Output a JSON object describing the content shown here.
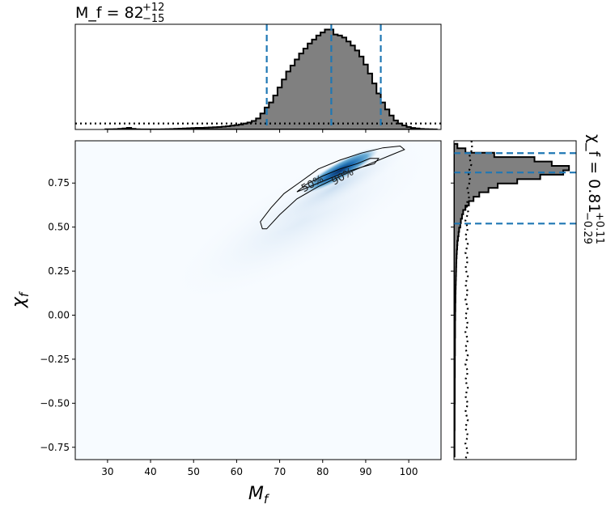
{
  "chart_data": [
    {
      "type": "heatmap",
      "name": "joint-posterior",
      "xlabel": "M_f",
      "ylabel": "χ_f",
      "xlim": [
        22.5,
        107.5
      ],
      "ylim": [
        -0.82,
        0.99
      ],
      "xticks": [
        30,
        40,
        50,
        60,
        70,
        80,
        90,
        100
      ],
      "yticks": [
        -0.75,
        -0.5,
        -0.25,
        0.0,
        0.25,
        0.5,
        0.75
      ],
      "xtick_labels": [
        "30",
        "40",
        "50",
        "60",
        "70",
        "80",
        "90",
        "100"
      ],
      "ytick_labels": [
        "−0.75",
        "−0.50",
        "−0.25",
        "0.00",
        "0.25",
        "0.50",
        "0.75"
      ],
      "colormap": "Blues",
      "density_peak": {
        "x": 84,
        "y": 0.82
      },
      "contours": [
        {
          "label": "50%",
          "label_at": {
            "x": 78,
            "y": 0.73
          },
          "points": [
            [
              74,
              0.7
            ],
            [
              76,
              0.74
            ],
            [
              80,
              0.79
            ],
            [
              84,
              0.83
            ],
            [
              88,
              0.86
            ],
            [
              91,
              0.89
            ],
            [
              93,
              0.89
            ],
            [
              92,
              0.86
            ],
            [
              89,
              0.84
            ],
            [
              85,
              0.81
            ],
            [
              81,
              0.77
            ],
            [
              77,
              0.73
            ],
            [
              75,
              0.71
            ],
            [
              74,
              0.7
            ]
          ]
        },
        {
          "label": "90%",
          "label_at": {
            "x": 85,
            "y": 0.77
          },
          "points": [
            [
              66,
              0.49
            ],
            [
              65.5,
              0.53
            ],
            [
              68,
              0.61
            ],
            [
              71,
              0.69
            ],
            [
              75,
              0.76
            ],
            [
              79,
              0.83
            ],
            [
              84,
              0.88
            ],
            [
              89,
              0.92
            ],
            [
              94,
              0.95
            ],
            [
              98,
              0.96
            ],
            [
              99,
              0.94
            ],
            [
              96,
              0.91
            ],
            [
              91,
              0.86
            ],
            [
              85,
              0.8
            ],
            [
              79,
              0.73
            ],
            [
              74,
              0.66
            ],
            [
              70,
              0.57
            ],
            [
              67,
              0.49
            ],
            [
              66,
              0.49
            ]
          ]
        }
      ]
    },
    {
      "type": "bar",
      "name": "M_f marginal",
      "orientation": "vertical",
      "title": "M_f = 82",
      "title_sup": "+12",
      "title_sub": "−15",
      "x": [
        30,
        31,
        32,
        33,
        34,
        35,
        36,
        37,
        38,
        39,
        40,
        41,
        42,
        43,
        44,
        45,
        46,
        47,
        48,
        49,
        50,
        51,
        52,
        53,
        54,
        55,
        56,
        57,
        58,
        59,
        60,
        61,
        62,
        63,
        64,
        65,
        66,
        67,
        68,
        69,
        70,
        71,
        72,
        73,
        74,
        75,
        76,
        77,
        78,
        79,
        80,
        81,
        82,
        83,
        84,
        85,
        86,
        87,
        88,
        89,
        90,
        91,
        92,
        93,
        94,
        95,
        96,
        97,
        98,
        99,
        100,
        101,
        102,
        103,
        104,
        105,
        106
      ],
      "values": [
        0.2,
        0.2,
        0.3,
        0.6,
        1.0,
        1.6,
        0.6,
        0.2,
        0.1,
        0.1,
        0.1,
        0.1,
        0.1,
        0.2,
        0.3,
        0.4,
        0.6,
        0.8,
        1.0,
        1.2,
        1.4,
        1.6,
        1.6,
        1.8,
        2.0,
        2.2,
        2.4,
        2.8,
        3.2,
        3.8,
        4.4,
        5.0,
        6.0,
        7.0,
        8.5,
        11,
        16,
        22,
        27,
        34,
        42,
        50,
        58,
        64,
        70,
        76,
        81,
        86,
        90,
        94,
        97,
        100,
        100,
        95,
        94,
        92,
        88,
        84,
        79,
        73,
        65,
        56,
        46,
        36,
        27,
        20,
        14,
        9,
        6,
        4,
        2.5,
        1.5,
        1,
        0.5,
        0.3,
        0.2,
        0.1
      ],
      "prior_level": 6,
      "credible_interval": [
        67,
        82,
        93.5
      ],
      "ylim": [
        0,
        102
      ]
    },
    {
      "type": "bar",
      "name": "χ_f marginal",
      "orientation": "horizontal",
      "title": "χ_f = 0.81",
      "title_sup": "+0.11",
      "title_sub": "−0.29",
      "bin_width": 0.025,
      "y": [
        0.96,
        0.935,
        0.91,
        0.885,
        0.86,
        0.835,
        0.81,
        0.785,
        0.76,
        0.735,
        0.71,
        0.685,
        0.66,
        0.635,
        0.61,
        0.585,
        0.56,
        0.535,
        0.51,
        0.485,
        0.46,
        0.435,
        0.41,
        0.385,
        0.36,
        0.335,
        0.31,
        0.285,
        0.26,
        0.235,
        0.21,
        0.185,
        0.16,
        0.135,
        0.11,
        0.085,
        0.06,
        0.035,
        0.01,
        -0.015,
        -0.04,
        -0.065,
        -0.09,
        -0.115,
        -0.14,
        -0.165,
        -0.19,
        -0.215,
        -0.24,
        -0.265,
        -0.29,
        -0.315,
        -0.34,
        -0.365,
        -0.39,
        -0.415,
        -0.44,
        -0.465,
        -0.49,
        -0.515,
        -0.54,
        -0.565,
        -0.59,
        -0.615,
        -0.64,
        -0.665,
        -0.69,
        -0.715,
        -0.74,
        -0.765,
        -0.79
      ],
      "values": [
        3,
        10,
        35,
        70,
        85,
        100,
        95,
        75,
        55,
        38,
        30,
        22,
        17,
        13,
        10,
        8,
        7,
        6,
        5.5,
        4.5,
        4,
        3.5,
        3,
        2.8,
        2.5,
        2.3,
        2.1,
        2,
        1.9,
        1.8,
        1.7,
        1.6,
        1.5,
        1.4,
        1.3,
        1.3,
        1.2,
        1.2,
        1.1,
        1.1,
        1,
        1,
        1,
        1,
        0.9,
        0.9,
        0.9,
        0.9,
        0.8,
        0.8,
        0.8,
        0.8,
        0.8,
        0.7,
        0.7,
        0.7,
        0.7,
        0.7,
        0.7,
        0.6,
        0.6,
        0.6,
        0.6,
        0.6,
        0.6,
        0.5,
        0.5,
        0.5,
        0.5,
        0.5,
        0.5
      ],
      "prior_level": 11,
      "credible_interval": [
        0.52,
        0.81,
        0.92
      ],
      "xlim": [
        0,
        102
      ]
    }
  ],
  "colors": {
    "hist_fill": "#808080",
    "interval_lines": "#1f77b4",
    "contour_lines": "#000000",
    "heatmap_background": "#f7fbff"
  }
}
